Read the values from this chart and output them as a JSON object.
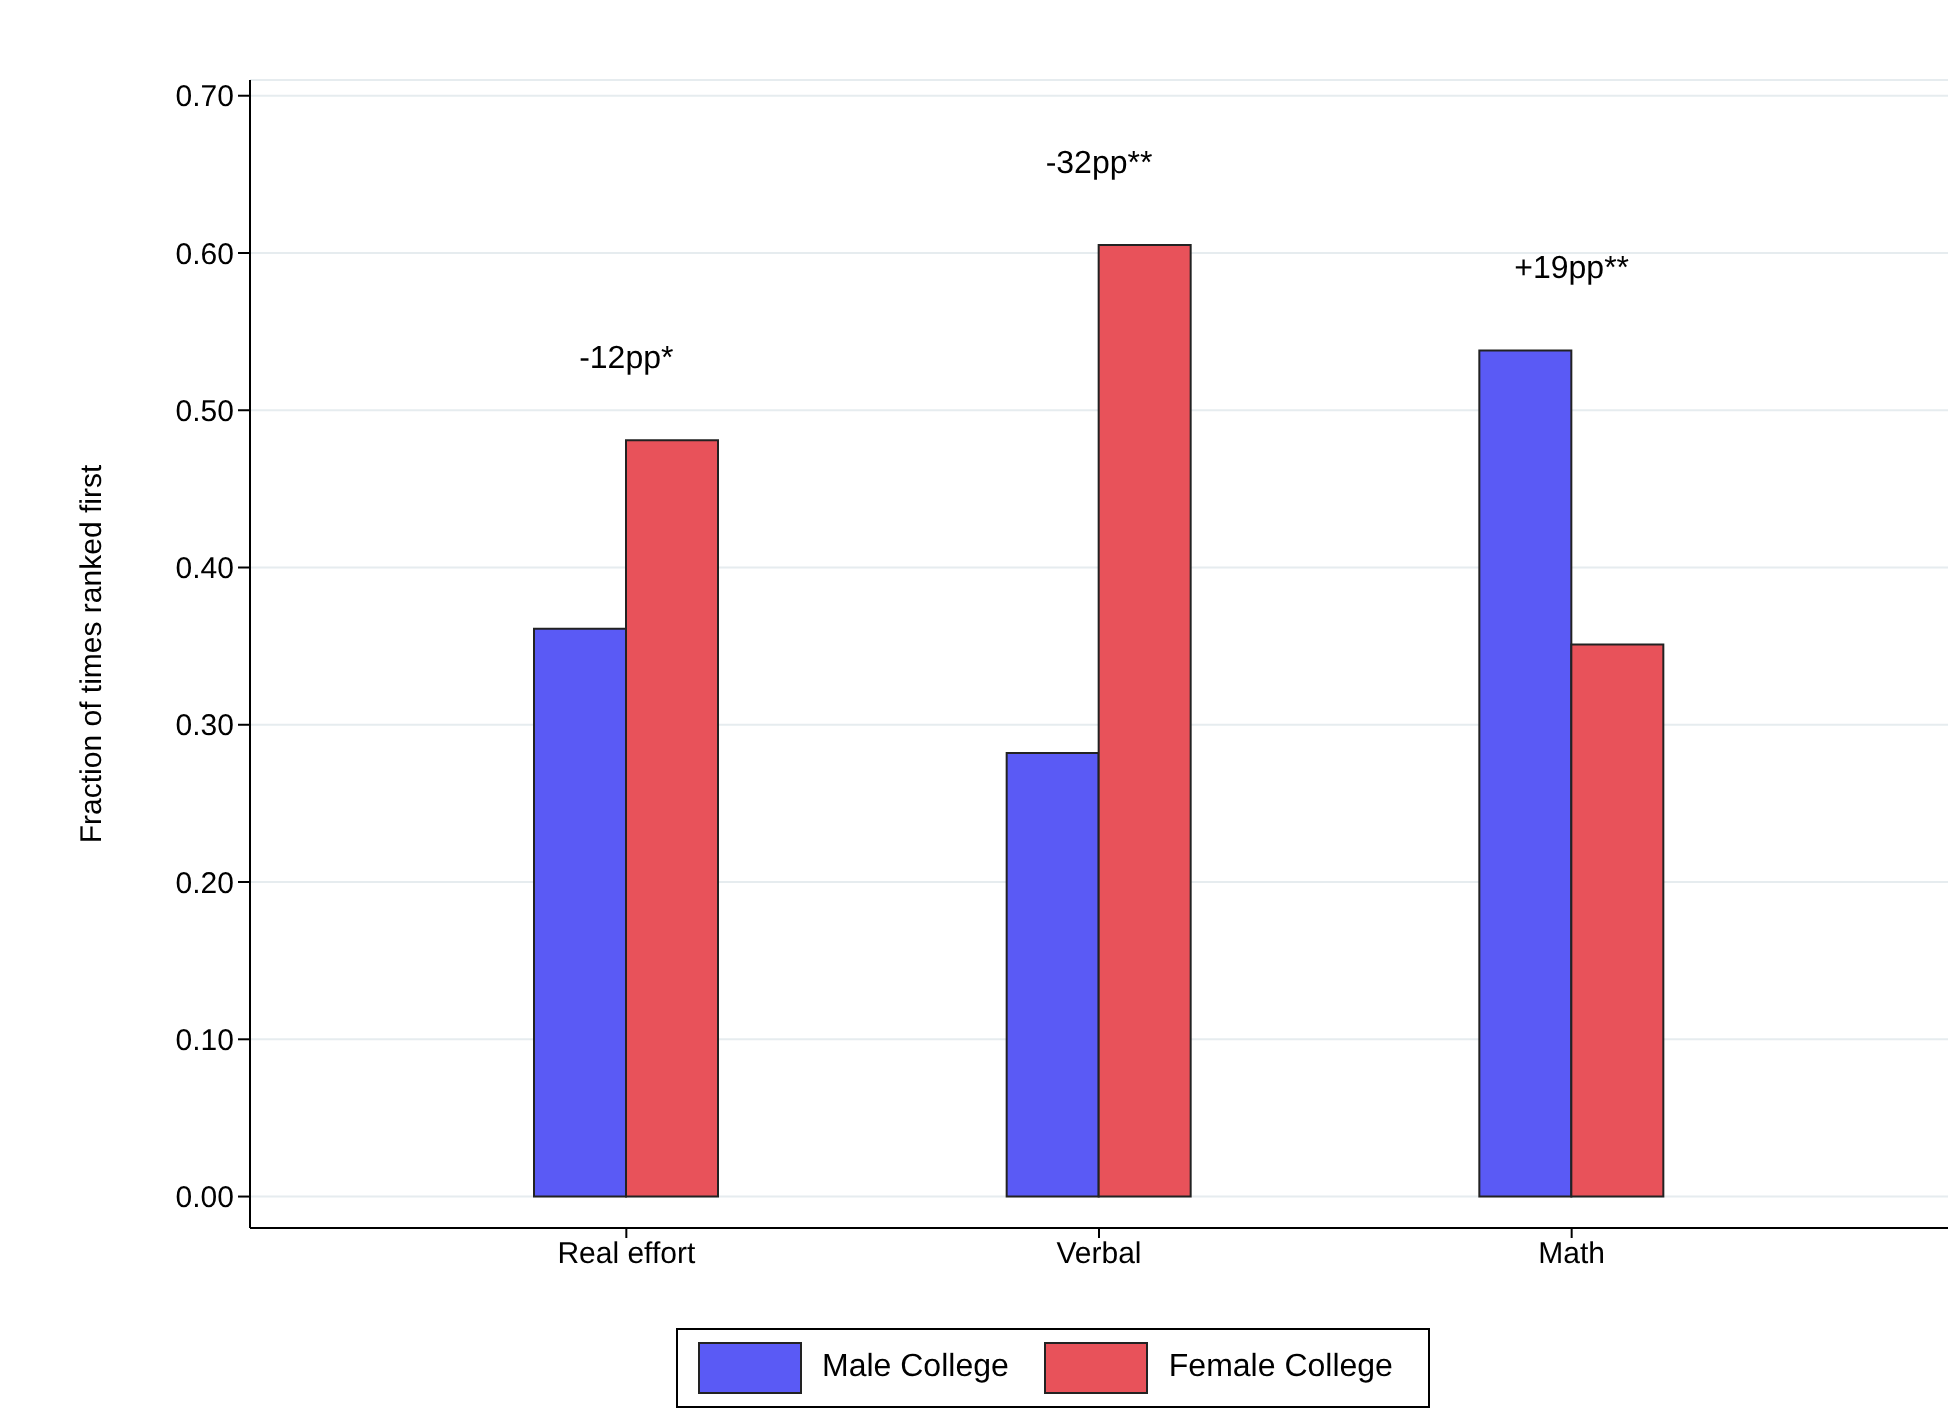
{
  "chart_data": {
    "type": "bar",
    "ylabel": "Fraction of times ranked first",
    "categories": [
      "Real effort",
      "Verbal",
      "Math"
    ],
    "series": [
      {
        "name": "Male College",
        "color": "#5a5af5",
        "values": [
          0.361,
          0.282,
          0.538
        ]
      },
      {
        "name": "Female College",
        "color": "#e8525a",
        "values": [
          0.481,
          0.605,
          0.351
        ]
      }
    ],
    "ylim": [
      -0.02,
      0.71
    ],
    "yticks": [
      {
        "value": 0,
        "label": "0.00"
      },
      {
        "value": 0.1,
        "label": "0.10"
      },
      {
        "value": 0.2,
        "label": "0.20"
      },
      {
        "value": 0.3,
        "label": "0.30"
      },
      {
        "value": 0.4,
        "label": "0.40"
      },
      {
        "value": 0.5,
        "label": "0.50"
      },
      {
        "value": 0.6,
        "label": "0.60"
      },
      {
        "value": 0.7,
        "label": "0.70"
      }
    ],
    "grid": "y",
    "legend": "bottom",
    "annotations": [
      "-12pp*",
      "-32pp**",
      "+19pp**"
    ]
  }
}
